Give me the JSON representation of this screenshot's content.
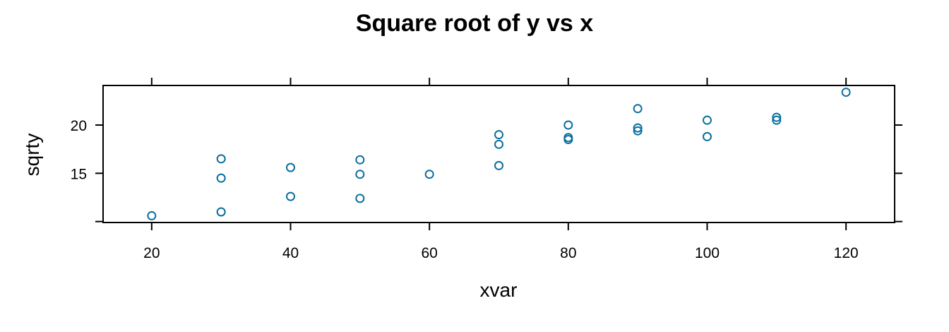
{
  "chart_data": {
    "type": "scatter",
    "title": "Square root of y vs x",
    "xlabel": "xvar",
    "ylabel": "sqrty",
    "xlim": [
      13,
      127
    ],
    "ylim": [
      9.9,
      24.1
    ],
    "x_ticks": [
      20,
      40,
      60,
      80,
      100,
      120
    ],
    "x_ticks_top": [
      20,
      40,
      60,
      80,
      100,
      120
    ],
    "y_ticks": [
      10,
      15,
      20
    ],
    "y_tick_labels": [
      {
        "value": 15,
        "label": "15"
      },
      {
        "value": 20,
        "label": "20"
      }
    ],
    "grid": false,
    "point_color": "#0a6e9e",
    "points": [
      {
        "x": 20,
        "y": 10.6
      },
      {
        "x": 30,
        "y": 11.0
      },
      {
        "x": 30,
        "y": 14.5
      },
      {
        "x": 30,
        "y": 16.5
      },
      {
        "x": 40,
        "y": 12.6
      },
      {
        "x": 40,
        "y": 15.6
      },
      {
        "x": 50,
        "y": 12.4
      },
      {
        "x": 50,
        "y": 14.9
      },
      {
        "x": 50,
        "y": 16.4
      },
      {
        "x": 60,
        "y": 14.9
      },
      {
        "x": 70,
        "y": 15.8
      },
      {
        "x": 70,
        "y": 18.0
      },
      {
        "x": 70,
        "y": 19.0
      },
      {
        "x": 80,
        "y": 18.5
      },
      {
        "x": 80,
        "y": 18.7
      },
      {
        "x": 80,
        "y": 20.0
      },
      {
        "x": 90,
        "y": 19.4
      },
      {
        "x": 90,
        "y": 19.7
      },
      {
        "x": 90,
        "y": 21.7
      },
      {
        "x": 100,
        "y": 18.8
      },
      {
        "x": 100,
        "y": 20.5
      },
      {
        "x": 110,
        "y": 20.5
      },
      {
        "x": 110,
        "y": 20.8
      },
      {
        "x": 120,
        "y": 23.4
      }
    ]
  }
}
